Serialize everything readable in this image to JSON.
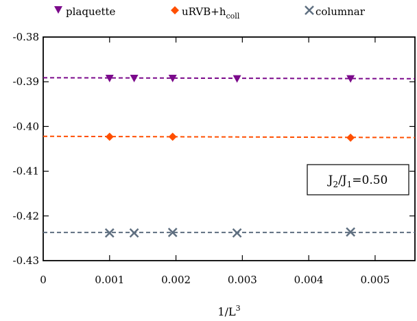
{
  "chart_data": {
    "type": "scatter",
    "title": "",
    "xlabel": {
      "base": "1/L",
      "sup": "3"
    },
    "ylabel": "",
    "xlim": [
      0,
      0.0056
    ],
    "ylim": [
      -0.43,
      -0.38
    ],
    "x_ticks": [
      0,
      0.001,
      0.002,
      0.003,
      0.004,
      0.005
    ],
    "x_tick_labels": [
      "0",
      "0.001",
      "0.002",
      "0.003",
      "0.004",
      "0.005"
    ],
    "y_ticks": [
      -0.38,
      -0.39,
      -0.4,
      -0.41,
      -0.42,
      -0.43
    ],
    "y_tick_labels": [
      "-0.38",
      "-0.39",
      "-0.40",
      "-0.41",
      "-0.42",
      "-0.43"
    ],
    "grid": false,
    "legend_position": "top",
    "annotation": {
      "parts": [
        "J",
        "2",
        "/J",
        "1",
        "=0.50"
      ]
    },
    "series": [
      {
        "name": "plaquette",
        "marker": "triangle-down",
        "color": "#7b0a8b",
        "x": [
          0.001,
          0.00137,
          0.00195,
          0.00292,
          0.00463
        ],
        "y": [
          -0.3892,
          -0.3892,
          -0.3892,
          -0.3893,
          -0.3893
        ],
        "fit": {
          "intercept": -0.3891,
          "slope": -0.04
        }
      },
      {
        "name_parts": [
          "uRVB+h",
          "coll"
        ],
        "marker": "diamond",
        "color": "#ff4f00",
        "x": [
          0.001,
          0.00195,
          0.00463
        ],
        "y": [
          -0.4023,
          -0.4023,
          -0.4025
        ],
        "fit": {
          "intercept": -0.4022,
          "slope": -0.05
        }
      },
      {
        "name": "columnar",
        "marker": "cross",
        "color": "#5f6f80",
        "x": [
          0.001,
          0.00137,
          0.00195,
          0.00292,
          0.00463
        ],
        "y": [
          -0.4238,
          -0.4238,
          -0.4237,
          -0.4238,
          -0.4236
        ],
        "fit": {
          "intercept": -0.4237,
          "slope": 0.0
        }
      }
    ]
  }
}
